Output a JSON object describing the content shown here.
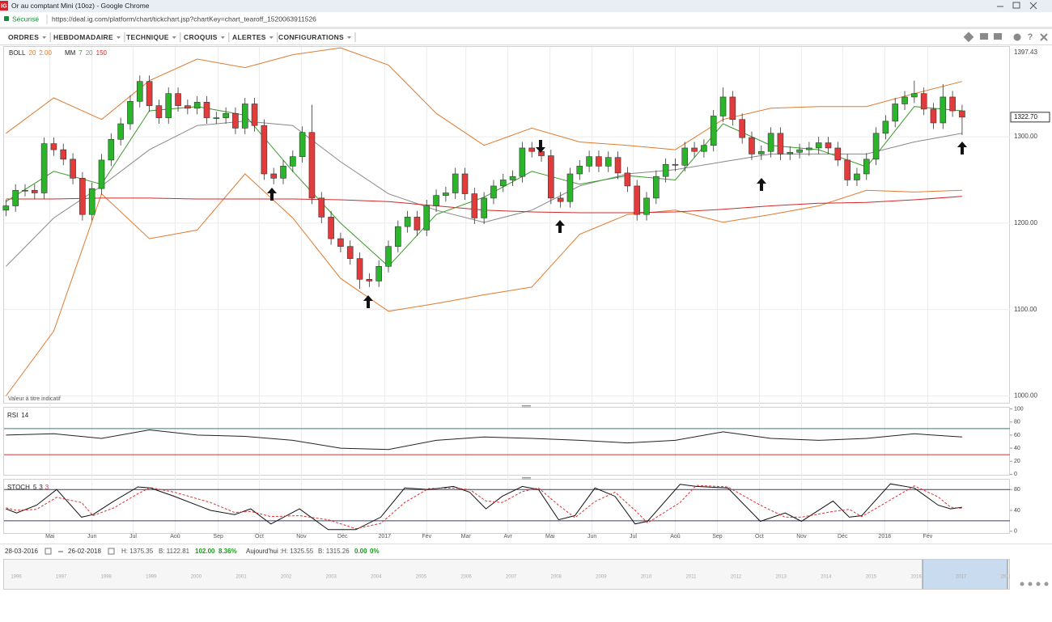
{
  "window": {
    "icon": "IG",
    "title": "Or au comptant Mini (10oz) - Google Chrome"
  },
  "browser": {
    "secure": "Sécurisé",
    "url": "https://deal.ig.com/platform/chart/tickchart.jsp?chartKey=chart_tearoff_1520063911526"
  },
  "menu": [
    "ORDRES",
    "HEBDOMADAIRE",
    "TECHNIQUE",
    "CROQUIS",
    "ALERTES",
    "CONFIGURATIONS"
  ],
  "status": {
    "from": "28-03-2016",
    "to": "26-02-2018",
    "high": "H: 1375.35",
    "low": "B: 1122.81",
    "change": "102.00",
    "change_pct": "8.36%",
    "today": "Aujourd'hui :",
    "today_high": "H: 1325.55",
    "today_low": "B: 1315.26",
    "today_change": "0.00",
    "today_pct": "0%"
  },
  "navigator": {
    "years": [
      "1996",
      "1997",
      "1998",
      "1999",
      "2000",
      "2001",
      "2002",
      "2003",
      "2004",
      "2005",
      "2006",
      "2007",
      "2008",
      "2009",
      "2010",
      "2011",
      "2012",
      "2013",
      "2014",
      "2015",
      "2016",
      "2017",
      "2018"
    ]
  },
  "chart_data": {
    "type": "candlestick",
    "open": [
      1215,
      1220,
      1238,
      1238,
      1235,
      1292,
      1285,
      1274,
      1252,
      1210,
      1240,
      1273,
      1297,
      1315,
      1341,
      1364,
      1336,
      1322,
      1350,
      1336,
      1333,
      1340,
      1322,
      1322,
      1327,
      1310,
      1338,
      1313,
      1257,
      1252,
      1266,
      1277,
      1305,
      1229,
      1207,
      1182,
      1173,
      1159,
      1135,
      1133,
      1150,
      1173,
      1196,
      1207,
      1192,
      1220,
      1232,
      1235,
      1257,
      1234,
      1206,
      1229,
      1243,
      1250,
      1254,
      1287,
      1283,
      1278,
      1229,
      1225,
      1257,
      1266,
      1277,
      1266,
      1276,
      1258,
      1243,
      1210,
      1229,
      1254,
      1268,
      1267,
      1287,
      1283,
      1290,
      1324,
      1346,
      1320,
      1299,
      1280,
      1283,
      1304,
      1280,
      1282,
      1285,
      1287,
      1293,
      1287,
      1273,
      1250,
      1257,
      1274,
      1304,
      1318,
      1338,
      1346,
      1350,
      1332,
      1316,
      1346,
      1330
    ],
    "high": [
      1227,
      1245,
      1245,
      1245,
      1299,
      1299,
      1292,
      1281,
      1259,
      1247,
      1280,
      1304,
      1322,
      1348,
      1371,
      1371,
      1343,
      1357,
      1357,
      1343,
      1347,
      1347,
      1329,
      1334,
      1334,
      1345,
      1345,
      1320,
      1264,
      1273,
      1284,
      1312,
      1337,
      1236,
      1214,
      1189,
      1180,
      1166,
      1142,
      1157,
      1180,
      1203,
      1214,
      1214,
      1227,
      1239,
      1242,
      1264,
      1264,
      1241,
      1236,
      1250,
      1257,
      1261,
      1294,
      1294,
      1290,
      1285,
      1236,
      1264,
      1273,
      1284,
      1284,
      1283,
      1283,
      1265,
      1250,
      1236,
      1261,
      1275,
      1275,
      1294,
      1294,
      1297,
      1331,
      1357,
      1353,
      1327,
      1306,
      1290,
      1311,
      1311,
      1289,
      1292,
      1294,
      1300,
      1300,
      1294,
      1280,
      1264,
      1281,
      1311,
      1325,
      1345,
      1353,
      1365,
      1357,
      1339,
      1361,
      1353,
      1337
    ],
    "low": [
      1208,
      1213,
      1231,
      1228,
      1228,
      1278,
      1267,
      1245,
      1203,
      1203,
      1233,
      1266,
      1290,
      1308,
      1334,
      1329,
      1315,
      1315,
      1329,
      1326,
      1326,
      1315,
      1315,
      1315,
      1303,
      1303,
      1306,
      1250,
      1245,
      1245,
      1259,
      1270,
      1222,
      1200,
      1175,
      1166,
      1152,
      1124,
      1126,
      1126,
      1143,
      1166,
      1189,
      1185,
      1185,
      1213,
      1225,
      1228,
      1227,
      1199,
      1199,
      1222,
      1236,
      1243,
      1247,
      1276,
      1271,
      1222,
      1218,
      1218,
      1250,
      1259,
      1259,
      1259,
      1251,
      1236,
      1203,
      1203,
      1222,
      1247,
      1260,
      1260,
      1276,
      1276,
      1283,
      1317,
      1313,
      1292,
      1273,
      1273,
      1276,
      1273,
      1273,
      1275,
      1278,
      1280,
      1280,
      1266,
      1243,
      1243,
      1250,
      1267,
      1297,
      1311,
      1331,
      1339,
      1325,
      1309,
      1309,
      1323,
      1302
    ],
    "close": [
      1220,
      1238,
      1238,
      1235,
      1292,
      1285,
      1274,
      1252,
      1210,
      1240,
      1273,
      1297,
      1315,
      1341,
      1364,
      1336,
      1322,
      1350,
      1336,
      1333,
      1340,
      1322,
      1322,
      1327,
      1310,
      1338,
      1313,
      1257,
      1252,
      1266,
      1277,
      1305,
      1229,
      1207,
      1182,
      1173,
      1159,
      1135,
      1133,
      1150,
      1173,
      1196,
      1207,
      1192,
      1220,
      1232,
      1235,
      1257,
      1234,
      1206,
      1229,
      1243,
      1250,
      1254,
      1287,
      1283,
      1278,
      1229,
      1225,
      1257,
      1266,
      1277,
      1266,
      1276,
      1258,
      1243,
      1210,
      1229,
      1254,
      1268,
      1267,
      1287,
      1283,
      1290,
      1324,
      1346,
      1320,
      1299,
      1280,
      1283,
      1304,
      1280,
      1282,
      1285,
      1287,
      1293,
      1287,
      1273,
      1250,
      1257,
      1274,
      1304,
      1318,
      1338,
      1346,
      1350,
      1332,
      1316,
      1346,
      1330,
      1322.7
    ],
    "up_color": "#2bb52b",
    "down_color": "#e23b3b",
    "xlim": [
      -0.2,
      105
    ],
    "xticks": [
      {
        "value": 4.6,
        "label": "Mai"
      },
      {
        "value": 9.0,
        "label": "Jun"
      },
      {
        "value": 13.3,
        "label": "Jul"
      },
      {
        "value": 17.7,
        "label": "Aoû"
      },
      {
        "value": 22.2,
        "label": "Sep"
      },
      {
        "value": 26.5,
        "label": "Oct"
      },
      {
        "value": 30.9,
        "label": "Nov"
      },
      {
        "value": 35.2,
        "label": "Déc"
      },
      {
        "value": 39.6,
        "label": "2017"
      },
      {
        "value": 44.0,
        "label": "Fév"
      },
      {
        "value": 48.1,
        "label": "Mar"
      },
      {
        "value": 52.5,
        "label": "Avr"
      },
      {
        "value": 56.9,
        "label": "Mai"
      },
      {
        "value": 61.3,
        "label": "Jun"
      },
      {
        "value": 65.6,
        "label": "Jul"
      },
      {
        "value": 70.0,
        "label": "Aoû"
      },
      {
        "value": 74.4,
        "label": "Sep"
      },
      {
        "value": 78.8,
        "label": "Oct"
      },
      {
        "value": 83.2,
        "label": "Nov"
      },
      {
        "value": 87.5,
        "label": "Déc"
      },
      {
        "value": 91.9,
        "label": "2018"
      },
      {
        "value": 96.4,
        "label": "Fév"
      }
    ],
    "ylim": [
      992,
      1404
    ],
    "yticks": [
      {
        "value": 1000,
        "label": "1000.00"
      },
      {
        "value": 1100,
        "label": "1100.00"
      },
      {
        "value": 1200,
        "label": "1200.00"
      },
      {
        "value": 1300,
        "label": "1300.00"
      }
    ],
    "grid": true,
    "y_high_label": 1397.43,
    "last_price": {
      "value": 1322.7,
      "label": "1322.70"
    },
    "note": "Valeur à titre indicatif",
    "legend": [
      {
        "label": "BOLL",
        "params": [
          {
            "text": "20",
            "color": "#e07a2e"
          },
          {
            "text": "2.00",
            "color": "#e07a2e"
          }
        ]
      },
      {
        "label": "MM",
        "params": [
          {
            "text": "7",
            "color": "#3a9a2a"
          },
          {
            "text": "20",
            "color": "#888888"
          },
          {
            "text": "150",
            "color": "#d02828"
          }
        ]
      }
    ],
    "overlays": [
      {
        "color": "#e07a2e",
        "x": [
          0,
          5,
          10,
          15,
          20,
          25,
          30,
          35,
          40,
          45,
          50,
          55,
          60,
          65,
          70,
          75,
          80,
          85,
          90,
          95,
          100
        ],
        "values": [
          1304,
          1345,
          1320,
          1365,
          1390,
          1380,
          1395,
          1403,
          1383,
          1327,
          1290,
          1310,
          1294,
          1290,
          1285,
          1320,
          1333,
          1335,
          1335,
          1350,
          1364
        ]
      },
      {
        "color": "#e07a2e",
        "x": [
          0,
          5,
          10,
          15,
          20,
          25,
          30,
          35,
          40,
          45,
          50,
          55,
          60,
          65,
          70,
          75,
          80,
          85,
          90,
          95,
          100
        ],
        "values": [
          1000,
          1075,
          1234,
          1182,
          1192,
          1257,
          1206,
          1136,
          1098,
          1107,
          1117,
          1126,
          1187,
          1210,
          1215,
          1201,
          1210,
          1220,
          1238,
          1236,
          1238
        ]
      },
      {
        "color": "#888888",
        "x": [
          0,
          5,
          10,
          15,
          20,
          25,
          30,
          35,
          40,
          45,
          50,
          55,
          60,
          65,
          70,
          75,
          80,
          85,
          90,
          95,
          100
        ],
        "values": [
          1150,
          1206,
          1243,
          1285,
          1313,
          1318,
          1313,
          1271,
          1234,
          1215,
          1201,
          1215,
          1243,
          1257,
          1262,
          1271,
          1280,
          1280,
          1280,
          1294,
          1304
        ]
      },
      {
        "color": "#d02828",
        "x": [
          0,
          5,
          10,
          15,
          20,
          25,
          30,
          35,
          40,
          45,
          50,
          55,
          60,
          65,
          70,
          75,
          80,
          85,
          90,
          95,
          100
        ],
        "values": [
          1228,
          1228,
          1229,
          1229,
          1228,
          1228,
          1228,
          1227,
          1225,
          1220,
          1215,
          1213,
          1212,
          1212,
          1213,
          1216,
          1220,
          1223,
          1224,
          1227,
          1231
        ]
      },
      {
        "color": "#3a9a2a",
        "x": [
          0,
          5,
          10,
          15,
          20,
          25,
          30,
          35,
          40,
          45,
          50,
          55,
          60,
          65,
          70,
          75,
          80,
          85,
          90,
          95,
          100
        ],
        "values": [
          1225,
          1260,
          1245,
          1330,
          1335,
          1325,
          1260,
          1200,
          1150,
          1210,
          1230,
          1260,
          1245,
          1255,
          1250,
          1315,
          1290,
          1285,
          1265,
          1335,
          1330
        ]
      }
    ],
    "panels": [
      {
        "label": "RSI",
        "params": [
          {
            "text": "14",
            "color": "#222222"
          }
        ],
        "ylim": [
          -2,
          102
        ],
        "yticks": [
          0,
          20,
          40,
          60,
          80,
          100
        ],
        "levels": [
          {
            "value": 70,
            "color": "#2a7f8f"
          },
          {
            "value": 30,
            "color": "#d03030"
          }
        ],
        "series": [
          {
            "color": "#222222",
            "dash": false,
            "x": [
              0,
              5,
              10,
              15,
              20,
              25,
              30,
              35,
              40,
              45,
              50,
              55,
              60,
              65,
              70,
              75,
              80,
              85,
              90,
              95,
              100
            ],
            "values": [
              60,
              62,
              55,
              68,
              60,
              58,
              52,
              40,
              38,
              52,
              57,
              55,
              52,
              48,
              52,
              65,
              55,
              52,
              55,
              62,
              57
            ]
          }
        ]
      },
      {
        "label": "STOCH",
        "params": [
          {
            "text": "5",
            "color": "#222222"
          },
          {
            "text": "3",
            "color": "#222222"
          },
          {
            "text": "3",
            "color": "#d03030"
          }
        ],
        "ylim": [
          -5,
          99
        ],
        "yticks": [
          0,
          40,
          80
        ],
        "levels": [
          {
            "value": 80,
            "color": "#3a3a70"
          },
          {
            "value": 20,
            "color": "#3a3a70"
          }
        ],
        "series": [
          {
            "color": "#111111",
            "dash": false,
            "x": [
              0,
              1.1,
              3.2,
              5.3,
              7.9,
              9.1,
              11.3,
              13.8,
              15.1,
              17.6,
              21.4,
              23.9,
              25.6,
              27.7,
              30.7,
              33.7,
              36.6,
              39.2,
              41.7,
              44.2,
              46.8,
              48.5,
              50.2,
              51.9,
              54.0,
              55.7,
              57.8,
              59.5,
              61.6,
              63.7,
              65.8,
              67.1,
              70.5,
              72.2,
              75.5,
              78.9,
              81.5,
              83.2,
              86.5,
              88.2,
              89.5,
              92.5,
              95.0,
              97.5,
              98.8,
              100
            ],
            "values": [
              43,
              35,
              50,
              80,
              27,
              32,
              58,
              85,
              83,
              67,
              40,
              32,
              43,
              14,
              43,
              3,
              3,
              27,
              83,
              80,
              86,
              75,
              43,
              67,
              86,
              80,
              22,
              30,
              83,
              67,
              14,
              19,
              90,
              86,
              83,
              19,
              35,
              19,
              58,
              27,
              30,
              91,
              83,
              50,
              43,
              46
            ]
          },
          {
            "color": "#e03030",
            "dash": true,
            "x": [
              0,
              1.1,
              3.2,
              5.3,
              7.9,
              9.1,
              11.3,
              13.8,
              15.1,
              17.6,
              21.4,
              23.9,
              25.6,
              27.7,
              30.7,
              33.7,
              36.6,
              39.2,
              41.7,
              44.2,
              46.8,
              48.5,
              50.2,
              51.9,
              54.0,
              55.7,
              57.8,
              59.5,
              61.6,
              63.7,
              65.8,
              67.1,
              70.5,
              72.2,
              75.5,
              78.9,
              81.5,
              83.2,
              86.5,
              88.2,
              89.5,
              92.5,
              95.0,
              97.5,
              98.8,
              100
            ],
            "values": [
              45,
              40,
              42,
              65,
              55,
              30,
              45,
              72,
              84,
              75,
              55,
              36,
              38,
              28,
              30,
              22,
              5,
              15,
              55,
              82,
              83,
              80,
              58,
              55,
              76,
              83,
              50,
              26,
              57,
              75,
              40,
              16,
              55,
              88,
              85,
              50,
              27,
              27,
              38,
              42,
              28,
              60,
              87,
              66,
              46,
              44
            ]
          }
        ]
      }
    ]
  }
}
